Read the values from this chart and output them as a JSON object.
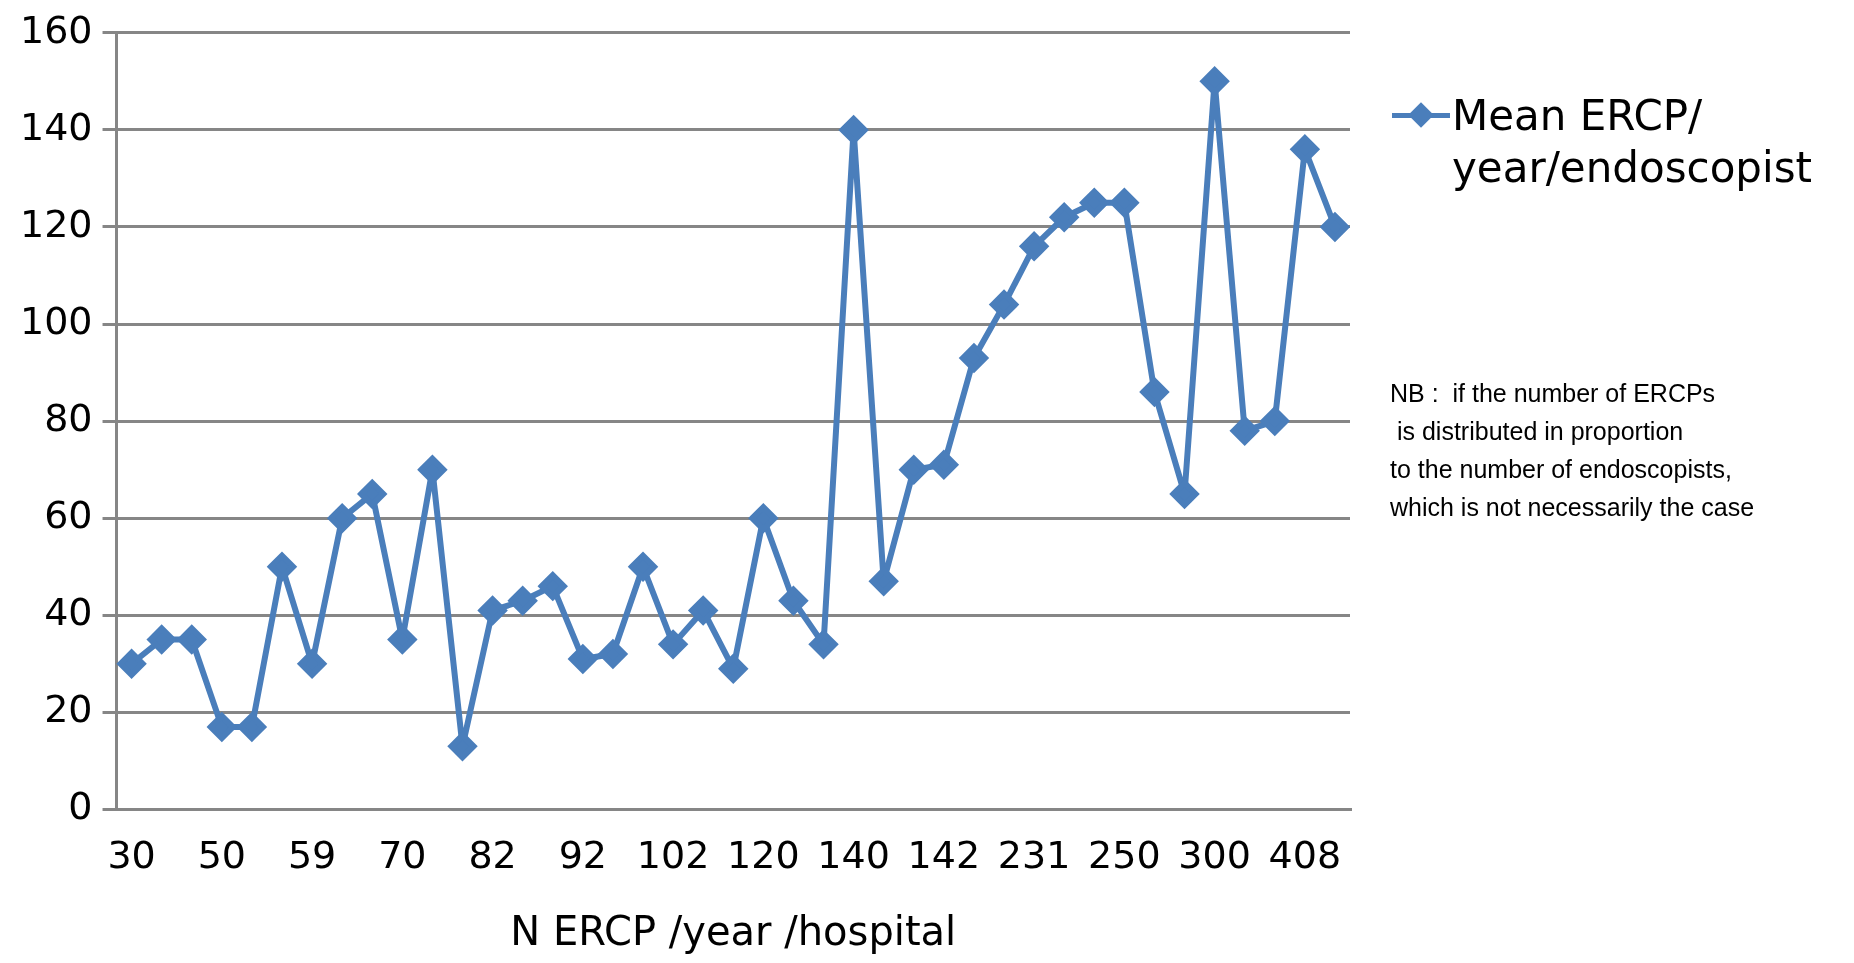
{
  "chart_data": {
    "type": "line",
    "xlabel": "N ERCP /year /hospital",
    "categories": [
      "30",
      null,
      null,
      "50",
      null,
      null,
      "59",
      null,
      null,
      "70",
      null,
      null,
      "82",
      null,
      null,
      "92",
      null,
      null,
      "102",
      null,
      null,
      "120",
      null,
      null,
      "140",
      null,
      null,
      "142",
      null,
      null,
      "231",
      null,
      null,
      "250",
      null,
      null,
      "300",
      null,
      null,
      "408",
      null
    ],
    "series": [
      {
        "name": "Mean ERCP/ year/endoscopist",
        "color": "#4a7ebb",
        "values": [
          30,
          35,
          35,
          17,
          17,
          50,
          30,
          60,
          65,
          35,
          70,
          13,
          41,
          43,
          46,
          31,
          32,
          50,
          34,
          41,
          29,
          60,
          43,
          34,
          140,
          47,
          70,
          71,
          93,
          104,
          116,
          122,
          125,
          125,
          86,
          65,
          150,
          78,
          80,
          136,
          120
        ]
      }
    ],
    "ylim": [
      0,
      160
    ],
    "yticks": [
      0,
      20,
      40,
      60,
      80,
      100,
      120,
      140,
      160
    ],
    "grid": "y",
    "legend": "right",
    "marker": "diamond",
    "line_style": "solid",
    "annotations": [
      "NB :  if the number of ERCPs\n is distributed in proportion\nto the number of endoscopists,\nwhich is not necessarily the case"
    ]
  }
}
